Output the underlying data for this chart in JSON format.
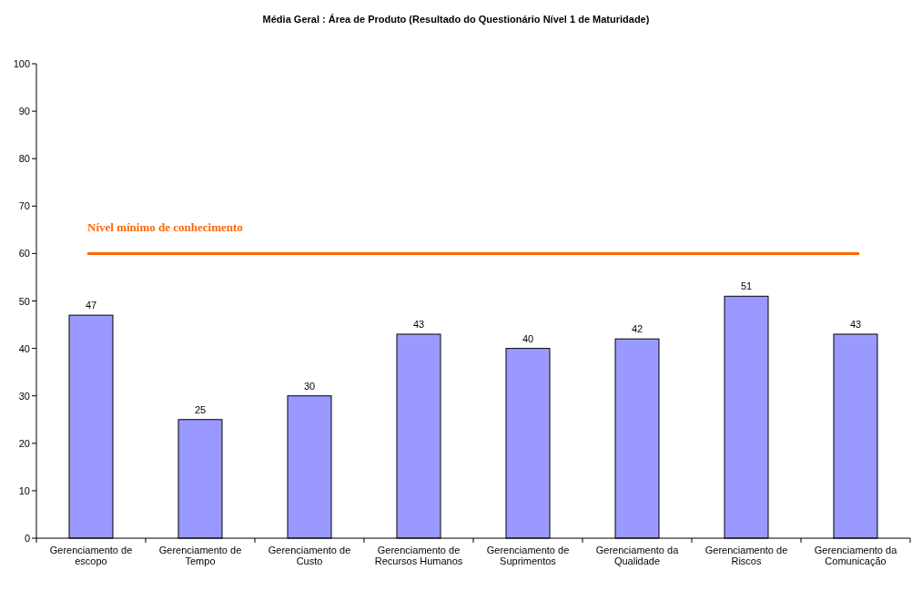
{
  "chart_data": {
    "type": "bar",
    "title": "Média Geral : Área de Produto (Resultado do Questionário Nível 1 de Maturidade)",
    "categories": [
      "Gerenciamento de escopo",
      "Gerenciamento de Tempo",
      "Gerenciamento de Custo",
      "Gerenciamento de Recursos Humanos",
      "Gerenciamento de Suprimentos",
      "Gerenciamento da Qualidade",
      "Gerenciamento de Riscos",
      "Gerenciamento da Comunicação"
    ],
    "values": [
      47,
      25,
      30,
      43,
      40,
      42,
      51,
      43
    ],
    "color": "#9999ff",
    "ylim": [
      0,
      100
    ],
    "yticks": [
      0,
      10,
      20,
      30,
      40,
      50,
      60,
      70,
      80,
      90,
      100
    ],
    "data_labels": true,
    "grid": false,
    "ref_lines": [
      {
        "axis": "y",
        "value": 60,
        "label": "Nível mínimo de conhecimento",
        "color": "#ff6600"
      }
    ]
  }
}
